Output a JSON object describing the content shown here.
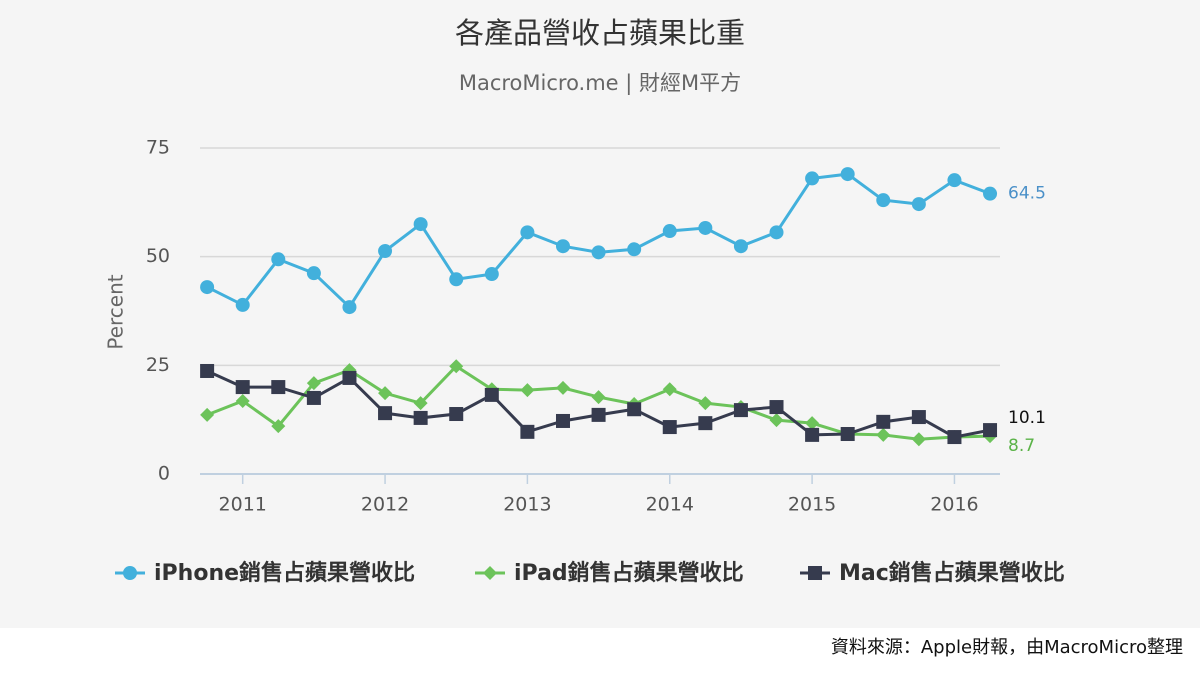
{
  "chart_data": {
    "type": "line",
    "title": "各產品營收占蘋果比重",
    "subtitle": "MacroMicro.me | 財經M平方",
    "y_label": "Percent",
    "source": "資料來源：Apple財報，由MacroMicro整理",
    "x": [
      2010.75,
      2011,
      2011.25,
      2011.5,
      2011.75,
      2012,
      2012.25,
      2012.5,
      2012.75,
      2013,
      2013.25,
      2013.5,
      2013.75,
      2014,
      2014.25,
      2014.5,
      2014.75,
      2015,
      2015.25,
      2015.5,
      2015.75,
      2016,
      2016.25
    ],
    "xlim": [
      2010.7,
      2016.32
    ],
    "xticks": [
      2011,
      2012,
      2013,
      2014,
      2015,
      2016
    ],
    "ylim": [
      0,
      75
    ],
    "yticks": [
      0,
      25,
      50,
      75
    ],
    "grid": true,
    "legend": "bottom",
    "series": [
      {
        "name": "iPhone銷售占蘋果營收比",
        "color": "#42b0dc",
        "label_color": "#4a90c8",
        "marker": "circle",
        "values": [
          43.0,
          38.9,
          49.4,
          46.2,
          38.4,
          51.3,
          57.5,
          44.8,
          46.0,
          55.6,
          52.4,
          51.0,
          51.7,
          55.9,
          56.6,
          52.4,
          55.6,
          68.0,
          69.0,
          63.0,
          62.1,
          67.6,
          64.5
        ]
      },
      {
        "name": "iPad銷售占蘋果營收比",
        "color": "#6cc35a",
        "label_color": "#5bb348",
        "marker": "diamond",
        "values": [
          13.6,
          16.8,
          11.0,
          20.9,
          23.9,
          18.6,
          16.3,
          24.8,
          19.5,
          19.3,
          19.8,
          17.7,
          16.1,
          19.5,
          16.3,
          15.4,
          12.4,
          11.7,
          9.2,
          9.0,
          8.0,
          8.5,
          8.7
        ]
      },
      {
        "name": "Mac銷售占蘋果營收比",
        "color": "#363b4e",
        "label_color": "#111111",
        "marker": "square",
        "values": [
          23.7,
          20.0,
          20.0,
          17.5,
          22.1,
          14.0,
          12.9,
          13.8,
          18.2,
          9.7,
          12.2,
          13.6,
          14.9,
          10.8,
          11.7,
          14.7,
          15.4,
          9.0,
          9.2,
          12.0,
          13.1,
          8.5,
          10.1
        ]
      }
    ]
  }
}
